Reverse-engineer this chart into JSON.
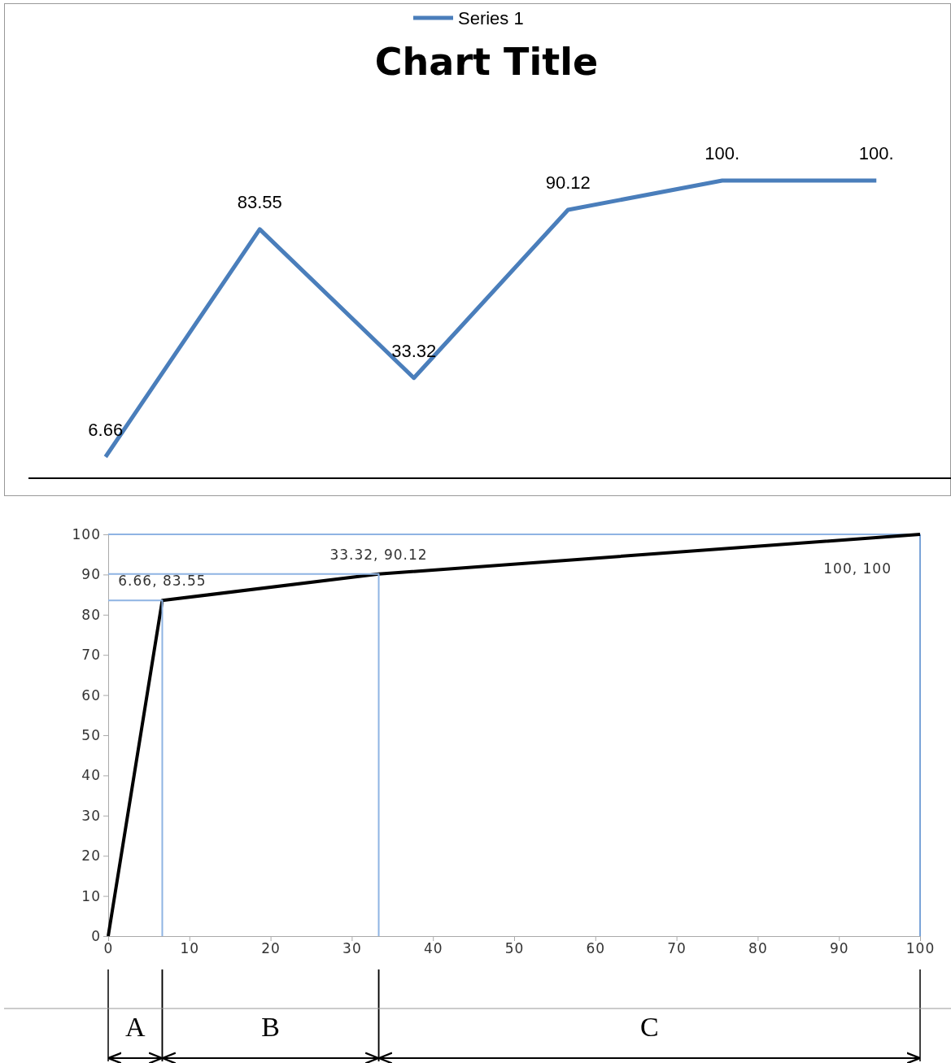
{
  "chart_data": [
    {
      "type": "line",
      "title": "Chart Title",
      "categories": [
        null,
        null,
        null,
        null,
        null,
        null
      ],
      "legend": "top",
      "series": [
        {
          "name": "Series 1",
          "color": "#4a7ebb",
          "values": [
            6.66,
            83.55,
            33.32,
            90.12,
            100,
            100
          ],
          "value_labels": [
            "6.66",
            "83.55",
            "33.32",
            "90.12",
            "100.",
            "100."
          ]
        }
      ]
    },
    {
      "type": "line",
      "xlim": [
        0,
        100
      ],
      "xticks": [
        0,
        10,
        20,
        30,
        40,
        50,
        60,
        70,
        80,
        90,
        100
      ],
      "ylim": [
        0,
        100
      ],
      "yticks": [
        0,
        10,
        20,
        30,
        40,
        50,
        60,
        70,
        80,
        90,
        100
      ],
      "series": [
        {
          "color": "#000000",
          "x": [
            0,
            6.66,
            33.32,
            100
          ],
          "values": [
            0,
            83.55,
            90.12,
            100
          ]
        },
        {
          "color": "#8fb4e3",
          "x": [
            0,
            6.66,
            6.66
          ],
          "values": [
            83.55,
            83.55,
            0
          ]
        },
        {
          "color": "#8fb4e3",
          "x": [
            0,
            33.32,
            33.32
          ],
          "values": [
            90.12,
            90.12,
            0
          ]
        }
      ],
      "ref_lines": [
        {
          "axis": "y",
          "value": 100,
          "color": "#8fb4e3"
        },
        {
          "axis": "x",
          "value": 100,
          "color": "#7aa3d8"
        }
      ],
      "annotations": [
        {
          "text": "6.66, 83.55",
          "x": 6.66,
          "y": 83.55
        },
        {
          "text": "33.32, 90.12",
          "x": 33.32,
          "y": 90.12
        },
        {
          "text": "100, 100",
          "x": 100,
          "y": 100
        },
        "A",
        "B",
        "C"
      ]
    }
  ]
}
